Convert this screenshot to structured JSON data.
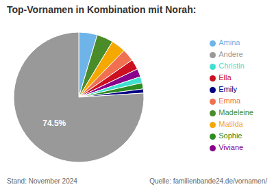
{
  "chart_data": {
    "type": "pie",
    "title": "Top-Vornamen in Kombination mit Norah:",
    "categories": [
      "Amina",
      "Madeleine",
      "Matilda",
      "Emma",
      "Ella",
      "Viviane",
      "Christin",
      "Sophie",
      "Emily",
      "Andere"
    ],
    "values": [
      4.5,
      4.0,
      3.5,
      3.0,
      2.5,
      2.0,
      1.5,
      1.5,
      1.0,
      74.5
    ],
    "value_labels": [
      null,
      null,
      null,
      null,
      null,
      null,
      null,
      null,
      null,
      "74.5%"
    ],
    "colors": [
      "#6EB4E8",
      "#4A8C2A",
      "#F5A800",
      "#F07050",
      "#CC1020",
      "#8B008B",
      "#40E0D0",
      "#2E8B20",
      "#000080",
      "#999999"
    ],
    "annotations": [
      "Stand: November 2024",
      "Quelle: familienbande24.de/vornamen/"
    ]
  }
}
